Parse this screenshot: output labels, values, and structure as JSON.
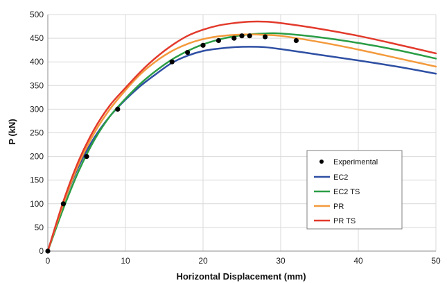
{
  "chart_data": {
    "type": "line",
    "title": "",
    "xlabel": "Horizontal Displacement (mm)",
    "ylabel": "P (kN)",
    "xlim": [
      0,
      50
    ],
    "ylim": [
      0,
      500
    ],
    "xticks": [
      0,
      10,
      20,
      30,
      40,
      50
    ],
    "yticks": [
      0,
      50,
      100,
      150,
      200,
      250,
      300,
      350,
      400,
      450,
      500
    ],
    "grid": true,
    "legend": "bottom-right",
    "experimental": {
      "name": "Experimental",
      "color": "#000000",
      "x": [
        0,
        2,
        5,
        9,
        16,
        18,
        20,
        22,
        24,
        25,
        26,
        28,
        32
      ],
      "y": [
        0,
        100,
        200,
        300,
        400,
        420,
        435,
        445,
        450,
        455,
        455,
        453,
        445
      ]
    },
    "series": [
      {
        "name": "EC2",
        "color": "#2E4FA3",
        "x": [
          0,
          2,
          4,
          6,
          8,
          10,
          12,
          14,
          16,
          18,
          20,
          22,
          24,
          26,
          28,
          30,
          35,
          40,
          45,
          50
        ],
        "y": [
          0,
          100,
          180,
          240,
          285,
          320,
          350,
          375,
          398,
          413,
          423,
          428,
          431,
          432,
          431,
          427,
          415,
          403,
          390,
          375
        ]
      },
      {
        "name": "EC2 TS",
        "color": "#2A9D45",
        "x": [
          0,
          2,
          4,
          6,
          8,
          10,
          12,
          14,
          16,
          18,
          20,
          22,
          24,
          26,
          28,
          30,
          35,
          40,
          45,
          50
        ],
        "y": [
          0,
          90,
          170,
          235,
          285,
          322,
          355,
          382,
          405,
          423,
          437,
          447,
          454,
          458,
          460,
          460,
          452,
          440,
          425,
          407
        ]
      },
      {
        "name": "PR",
        "color": "#F39A3C",
        "x": [
          0,
          2,
          4,
          6,
          8,
          10,
          12,
          14,
          16,
          18,
          20,
          22,
          24,
          26,
          28,
          30,
          35,
          40,
          45,
          50
        ],
        "y": [
          0,
          100,
          185,
          250,
          300,
          340,
          375,
          402,
          423,
          438,
          448,
          454,
          457,
          458,
          457,
          455,
          442,
          426,
          408,
          390
        ]
      },
      {
        "name": "PR TS",
        "color": "#E23A2C",
        "x": [
          0,
          2,
          4,
          6,
          8,
          10,
          12,
          14,
          16,
          18,
          20,
          22,
          24,
          26,
          28,
          30,
          35,
          40,
          45,
          50
        ],
        "y": [
          0,
          105,
          192,
          258,
          308,
          345,
          380,
          410,
          435,
          455,
          468,
          477,
          482,
          485,
          485,
          482,
          470,
          455,
          437,
          418
        ]
      }
    ]
  }
}
